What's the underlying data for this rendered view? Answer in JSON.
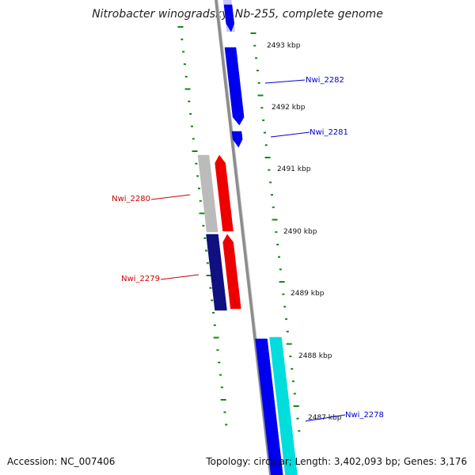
{
  "title": "Nitrobacter winogradskyi Nb-255, complete genome",
  "footer": {
    "accession": "Accession: NC_007406",
    "topology": "Topology: circular; Length: 3,402,093 bp; Genes: 3,176"
  },
  "colors": {
    "backbone": "#8c8c8c",
    "tick": "#118811",
    "forward_gene": "#0000ee",
    "reverse_gene": "#ee0000",
    "gene_label_blue": "#0000cc",
    "gene_label_red": "#cc0000",
    "cds_navy": "#101080",
    "cds_cyan": "#00dddd",
    "cds_grey": "#bbbbbb"
  },
  "kbp_ticks": [
    "2493 kbp",
    "2492 kbp",
    "2491 kbp",
    "2490 kbp",
    "2489 kbp",
    "2488 kbp",
    "2487 kbp"
  ],
  "genes": [
    {
      "label": "Nwi_2282",
      "strand": "forward"
    },
    {
      "label": "Nwi_2281",
      "strand": "forward"
    },
    {
      "label": "Nwi_2280",
      "strand": "reverse"
    },
    {
      "label": "Nwi_2279",
      "strand": "reverse"
    },
    {
      "label": "Nwi_2278",
      "strand": "forward"
    }
  ]
}
